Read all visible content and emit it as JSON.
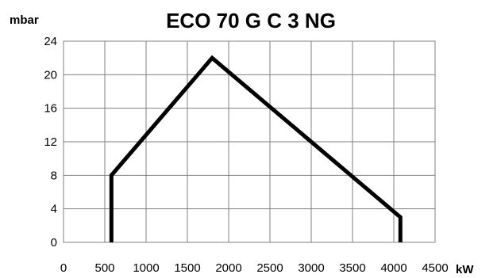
{
  "chart_data": {
    "type": "line",
    "title": "ECO 70 G C 3 NG",
    "ylabel": "mbar",
    "xlabel": "kW",
    "xlim": [
      0,
      4500
    ],
    "ylim": [
      0,
      24
    ],
    "x_ticks": [
      0,
      500,
      1000,
      1500,
      2000,
      2500,
      3000,
      3500,
      4000,
      4500
    ],
    "y_ticks": [
      0,
      4,
      8,
      12,
      16,
      20,
      24
    ],
    "x_tick_labels": [
      "0",
      "500",
      "1000",
      "1500",
      "2000",
      "2500",
      "3000",
      "3500",
      "4000",
      "4500"
    ],
    "y_tick_labels": [
      "0",
      "4",
      "8",
      "12",
      "16",
      "20",
      "24"
    ],
    "grid": true,
    "series": [
      {
        "x": [
          580,
          580,
          1800,
          4080,
          4080
        ],
        "y": [
          0,
          8,
          22,
          3,
          0
        ],
        "color": "#000000"
      }
    ]
  }
}
